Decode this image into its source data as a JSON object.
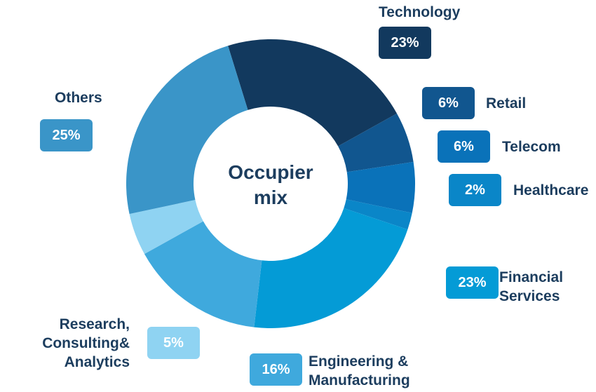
{
  "chart_data": {
    "type": "pie",
    "donut": true,
    "center_text": "Occupier mix",
    "categories": [
      "Technology",
      "Retail",
      "Telecom",
      "Healthcare",
      "Financial Services",
      "Engineering & Manufacturing",
      "Research, Consulting& Analytics",
      "Others"
    ],
    "values": [
      23,
      6,
      6,
      2,
      23,
      16,
      5,
      25
    ],
    "value_labels": [
      "23%",
      "6%",
      "6%",
      "2%",
      "23%",
      "16%",
      "5%",
      "25%"
    ],
    "colors": [
      "#12395e",
      "#11568f",
      "#0a72b9",
      "#0a86c8",
      "#049bd6",
      "#3fa9dd",
      "#8fd3f2",
      "#3a95c8"
    ]
  }
}
